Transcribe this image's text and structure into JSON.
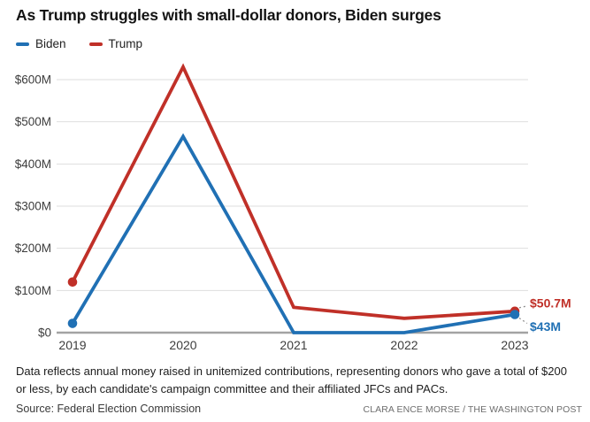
{
  "title": "As Trump struggles with small-dollar donors, Biden surges",
  "legend": [
    {
      "label": "Biden",
      "color": "#2070b4"
    },
    {
      "label": "Trump",
      "color": "#c03028"
    }
  ],
  "chart_data": {
    "type": "line",
    "x": [
      2019,
      2020,
      2021,
      2022,
      2023
    ],
    "x_tick_labels": [
      "2019",
      "2020",
      "2021",
      "2022",
      "2023"
    ],
    "series": [
      {
        "name": "Trump",
        "color": "#c03028",
        "values": [
          120,
          630,
          60,
          34,
          50.7
        ],
        "end_label": "$50.7M"
      },
      {
        "name": "Biden",
        "color": "#2070b4",
        "values": [
          22,
          465,
          0,
          0,
          43
        ],
        "end_label": "$43M"
      }
    ],
    "y_tick_values": [
      0,
      100,
      200,
      300,
      400,
      500,
      600
    ],
    "y_tick_labels": [
      "$0",
      "$100M",
      "$200M",
      "$300M",
      "$400M",
      "$500M",
      "$600M"
    ],
    "ylim": [
      0,
      650
    ],
    "unit": "USD, millions, annual unitemized contributions",
    "grid": "horizontal gridlines on",
    "legend_position": "top-left",
    "marker_points": "first and last point of each series"
  },
  "annotation_colors": {
    "gridline": "#dedede",
    "axis_line": "#a3a3a3",
    "leader_line": "#8f8f8f",
    "tick_text": "#3d3d3d"
  },
  "note": "Data reflects annual money raised in unitemized contributions, representing donors who gave a total of $200 or less, by each candidate's campaign committee and their affiliated JFCs and PACs.",
  "source": "Source: Federal Election Commission",
  "credit": "CLARA ENCE MORSE / THE WASHINGTON POST"
}
